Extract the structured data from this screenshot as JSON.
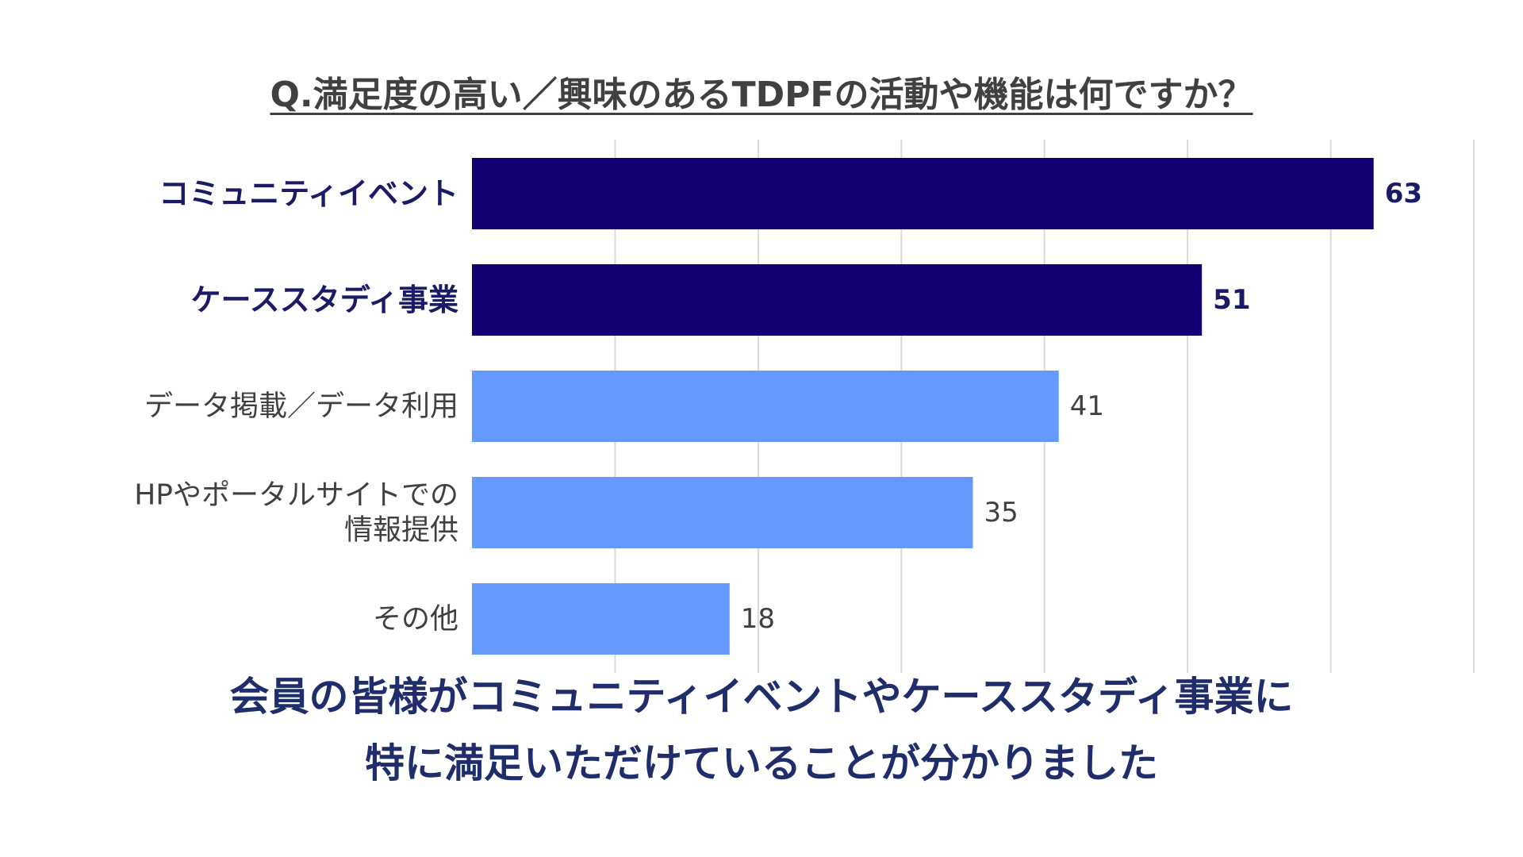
{
  "title": "Q.満足度の高い／興味のあるTDPFの活動や機能は何ですか？",
  "chart_data": {
    "type": "bar",
    "orientation": "horizontal",
    "categories": [
      [
        "コミュニティイベント"
      ],
      [
        "ケーススタディ事業"
      ],
      [
        "データ掲載／データ利用"
      ],
      [
        "HPやポータルサイトでの",
        "情報提供"
      ],
      [
        "その他"
      ]
    ],
    "values": [
      63,
      51,
      41,
      35,
      18
    ],
    "highlighted": [
      true,
      true,
      false,
      false,
      false
    ],
    "xlim": [
      0,
      70
    ],
    "grid": true,
    "colors": {
      "highlight": "#120075",
      "normal": "#6699ff",
      "highlight_label": "#1a1a66",
      "normal_label": "#404040",
      "grid": "#d9d9d9"
    }
  },
  "conclusion": {
    "line1": "会員の皆様がコミュニティイベントやケーススタディ事業に",
    "line2": "特に満足いただけていることが分かりました"
  }
}
